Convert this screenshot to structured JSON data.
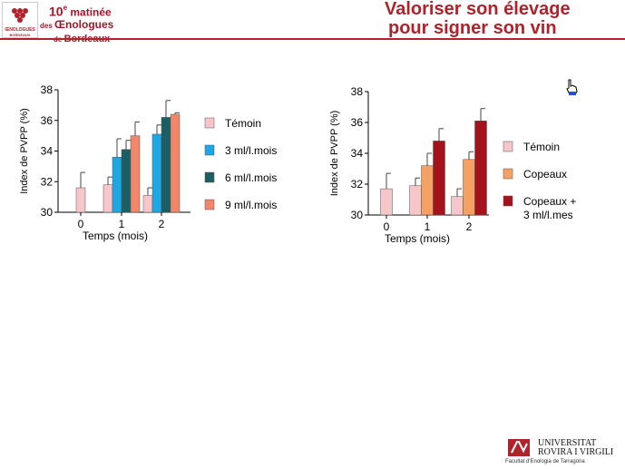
{
  "header": {
    "logo_caption_1": "ŒNOLOGUES",
    "logo_caption_2": "BORDEAUX",
    "matinee_number": "10",
    "matinee_sup": "e",
    "matinee_word": " matinée",
    "line2_prefix": "des ",
    "line2_word": "Œnologues",
    "line3_prefix": "de ",
    "line3_word": "Bordeaux",
    "title_line1": "Valoriser son élevage",
    "title_line2": "pour signer son vin"
  },
  "colors": {
    "brand_red": "#b0232a",
    "temoin": "#f7c6cb",
    "ml3": "#1fa7e4",
    "ml6": "#1b5e63",
    "ml9": "#f2866a",
    "copeaux": "#f4a163",
    "copeaux_ml": "#a4131c"
  },
  "chart_data": [
    {
      "type": "bar",
      "title": "",
      "xlabel": "Temps (mois)",
      "ylabel": "Index de PVPP (%)",
      "categories": [
        "0",
        "1",
        "2"
      ],
      "ylim": [
        30,
        38
      ],
      "yticks": [
        "30",
        "32",
        "34",
        "36",
        "38"
      ],
      "legend_position": "right",
      "series": [
        {
          "name": "Témoin",
          "color": "#f7c6cb",
          "values": [
            31.6,
            31.8,
            31.1
          ],
          "errors": [
            1.0,
            0.5,
            0.5
          ]
        },
        {
          "name": "3 ml/l.mois",
          "color": "#1fa7e4",
          "values": [
            null,
            33.6,
            35.1
          ],
          "errors": [
            null,
            1.2,
            0.6
          ]
        },
        {
          "name": "6 ml/l.mois",
          "color": "#1b5e63",
          "values": [
            null,
            34.1,
            36.2
          ],
          "errors": [
            null,
            0.6,
            1.1
          ]
        },
        {
          "name": "9 ml/l.mois",
          "color": "#f2866a",
          "values": [
            null,
            35.0,
            36.4
          ],
          "errors": [
            null,
            0.9,
            0.1
          ]
        }
      ]
    },
    {
      "type": "bar",
      "title": "",
      "xlabel": "Temps (mois)",
      "ylabel": "Index de PVPP (%)",
      "categories": [
        "0",
        "1",
        "2"
      ],
      "ylim": [
        30,
        38
      ],
      "yticks": [
        "30",
        "32",
        "34",
        "36",
        "38"
      ],
      "legend_position": "right",
      "series": [
        {
          "name": "Témoin",
          "color": "#f7c6cb",
          "values": [
            31.7,
            31.9,
            31.2
          ],
          "errors": [
            1.0,
            0.5,
            0.5
          ]
        },
        {
          "name": "Copeaux",
          "color": "#f4a163",
          "values": [
            null,
            33.2,
            33.6
          ],
          "errors": [
            null,
            0.8,
            0.5
          ]
        },
        {
          "name": "Copeaux + 3 ml/l.mes",
          "legend_lines": [
            "Copeaux +",
            "3 ml/l.mes"
          ],
          "color": "#a4131c",
          "values": [
            null,
            34.8,
            36.1
          ],
          "errors": [
            null,
            0.8,
            0.8
          ]
        }
      ]
    }
  ],
  "footer": {
    "uni_line1": "UNIVERSITAT",
    "uni_line2": "ROVIRA I VIRGILI",
    "faculty": "Facultat d'Enologia de Tarragona"
  }
}
